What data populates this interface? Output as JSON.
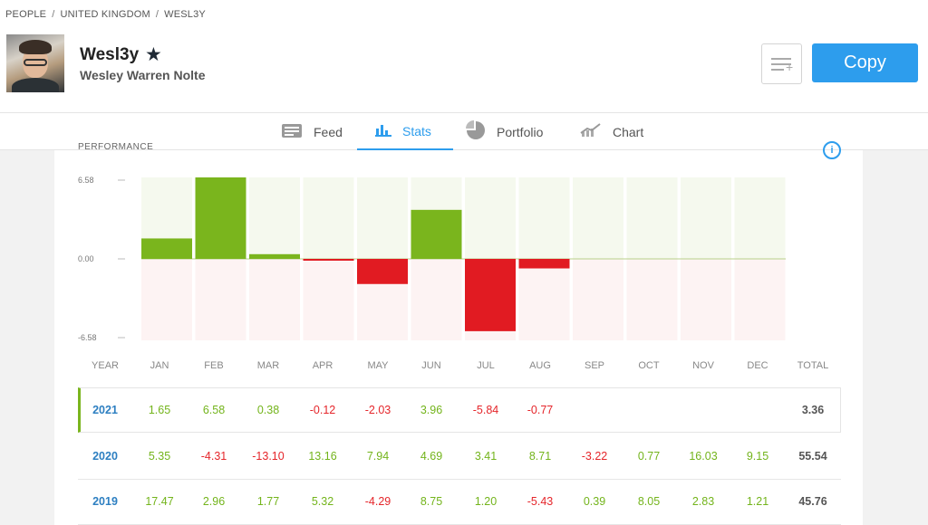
{
  "breadcrumb": [
    "PEOPLE",
    "UNITED KINGDOM",
    "WESL3Y"
  ],
  "profile": {
    "username": "Wesl3y",
    "full_name": "Wesley Warren Nolte",
    "star_icon": "star-icon"
  },
  "actions": {
    "copy_label": "Copy",
    "watch_icon": "add-to-watchlist-icon"
  },
  "tabs": [
    {
      "label": "Feed",
      "icon": "feed-icon",
      "active": false
    },
    {
      "label": "Stats",
      "icon": "stats-icon",
      "active": true
    },
    {
      "label": "Portfolio",
      "icon": "portfolio-icon",
      "active": false
    },
    {
      "label": "Chart",
      "icon": "chart-icon",
      "active": false
    }
  ],
  "performance": {
    "title": "PERFORMANCE",
    "info_icon": "info-icon"
  },
  "colors": {
    "accent": "#2d9ded",
    "positive": "#73b41b",
    "negative": "#e5252a"
  },
  "chart_data": {
    "type": "bar",
    "categories": [
      "JAN",
      "FEB",
      "MAR",
      "APR",
      "MAY",
      "JUN",
      "JUL",
      "AUG",
      "SEP",
      "OCT",
      "NOV",
      "DEC"
    ],
    "values": [
      1.65,
      6.58,
      0.38,
      -0.12,
      -2.03,
      3.96,
      -5.84,
      -0.77,
      null,
      null,
      null,
      null
    ],
    "ylim": [
      -6.58,
      6.58
    ],
    "ytick_labels": [
      "6.58",
      "0.00",
      "-6.58"
    ],
    "grid": false
  },
  "table": {
    "headers": [
      "YEAR",
      "JAN",
      "FEB",
      "MAR",
      "APR",
      "MAY",
      "JUN",
      "JUL",
      "AUG",
      "SEP",
      "OCT",
      "NOV",
      "DEC",
      "TOTAL"
    ],
    "rows": [
      {
        "year": "2021",
        "months": [
          "1.65",
          "6.58",
          "0.38",
          "-0.12",
          "-2.03",
          "3.96",
          "-5.84",
          "-0.77",
          "",
          "",
          "",
          ""
        ],
        "total": "3.36"
      },
      {
        "year": "2020",
        "months": [
          "5.35",
          "-4.31",
          "-13.10",
          "13.16",
          "7.94",
          "4.69",
          "3.41",
          "8.71",
          "-3.22",
          "0.77",
          "16.03",
          "9.15"
        ],
        "total": "55.54"
      },
      {
        "year": "2019",
        "months": [
          "17.47",
          "2.96",
          "1.77",
          "5.32",
          "-4.29",
          "8.75",
          "1.20",
          "-5.43",
          "0.39",
          "8.05",
          "2.83",
          "1.21"
        ],
        "total": "45.76"
      }
    ]
  }
}
